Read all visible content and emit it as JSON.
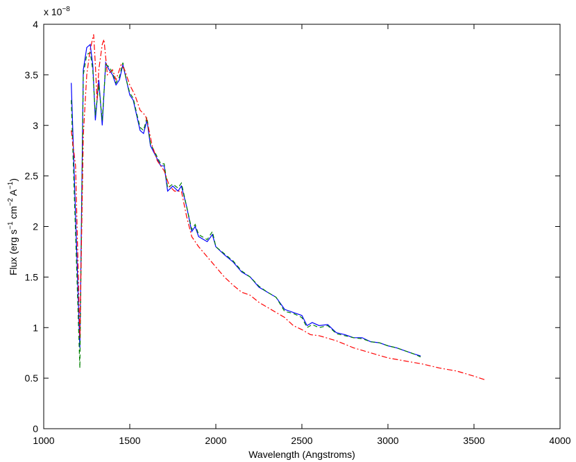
{
  "chart_data": {
    "type": "line",
    "exponent_label": [
      "x 10",
      "−8"
    ],
    "xlabel": "Wavelength (Angstroms)",
    "ylabel": [
      "Flux (erg s",
      "−1",
      " cm",
      "−2",
      " A",
      "−1",
      ")"
    ],
    "xlim": [
      1000,
      4000
    ],
    "ylim": [
      0,
      4
    ],
    "xticks": [
      1000,
      1500,
      2000,
      2500,
      3000,
      3500,
      4000
    ],
    "yticks": [
      0,
      0.5,
      1,
      1.5,
      2,
      2.5,
      3,
      3.5,
      4
    ],
    "grid": false,
    "series": [
      {
        "color": "#0000ff",
        "dash": "solid",
        "x": [
          1160,
          1210,
          1230,
          1250,
          1270,
          1285,
          1300,
          1320,
          1340,
          1360,
          1380,
          1400,
          1420,
          1440,
          1460,
          1480,
          1500,
          1520,
          1540,
          1560,
          1580,
          1600,
          1620,
          1650,
          1680,
          1700,
          1720,
          1750,
          1780,
          1800,
          1830,
          1860,
          1880,
          1900,
          1950,
          1980,
          2000,
          2050,
          2100,
          2150,
          2200,
          2250,
          2300,
          2350,
          2400,
          2450,
          2500,
          2530,
          2560,
          2600,
          2650,
          2700,
          2750,
          2800,
          2850,
          2900,
          2950,
          3000,
          3050,
          3100,
          3150,
          3190
        ],
        "values": [
          3.42,
          0.8,
          3.55,
          3.77,
          3.8,
          3.6,
          3.05,
          3.45,
          3.0,
          3.62,
          3.55,
          3.5,
          3.4,
          3.45,
          3.6,
          3.45,
          3.3,
          3.25,
          3.1,
          2.95,
          2.92,
          3.05,
          2.8,
          2.7,
          2.6,
          2.6,
          2.35,
          2.4,
          2.35,
          2.4,
          2.2,
          1.95,
          2.0,
          1.9,
          1.85,
          1.92,
          1.8,
          1.72,
          1.65,
          1.55,
          1.5,
          1.4,
          1.35,
          1.3,
          1.18,
          1.15,
          1.12,
          1.02,
          1.05,
          1.02,
          1.03,
          0.95,
          0.93,
          0.9,
          0.9,
          0.86,
          0.85,
          0.82,
          0.8,
          0.77,
          0.74,
          0.72
        ]
      },
      {
        "color": "#008000",
        "dash": "dashed",
        "x": [
          1160,
          1210,
          1230,
          1250,
          1270,
          1285,
          1300,
          1320,
          1340,
          1360,
          1380,
          1400,
          1420,
          1440,
          1460,
          1480,
          1500,
          1520,
          1540,
          1560,
          1580,
          1600,
          1620,
          1650,
          1680,
          1700,
          1720,
          1750,
          1780,
          1800,
          1830,
          1860,
          1880,
          1900,
          1950,
          1980,
          2000,
          2050,
          2100,
          2150,
          2200,
          2250,
          2300,
          2350,
          2400,
          2450,
          2500,
          2530,
          2560,
          2600,
          2650,
          2700,
          2750,
          2800,
          2850,
          2900,
          2950,
          3000,
          3050,
          3100,
          3150,
          3190
        ],
        "values": [
          3.25,
          0.6,
          3.5,
          3.7,
          3.72,
          3.55,
          3.1,
          3.4,
          3.05,
          3.6,
          3.58,
          3.52,
          3.42,
          3.48,
          3.62,
          3.45,
          3.32,
          3.27,
          3.12,
          2.98,
          2.95,
          3.08,
          2.82,
          2.72,
          2.62,
          2.62,
          2.38,
          2.42,
          2.38,
          2.43,
          2.2,
          1.97,
          2.02,
          1.92,
          1.87,
          1.95,
          1.8,
          1.73,
          1.66,
          1.56,
          1.5,
          1.41,
          1.35,
          1.3,
          1.16,
          1.14,
          1.1,
          1.0,
          1.03,
          1.0,
          1.02,
          0.94,
          0.92,
          0.9,
          0.89,
          0.86,
          0.85,
          0.82,
          0.8,
          0.77,
          0.74,
          0.71
        ]
      },
      {
        "color": "#ff0000",
        "dash": "dashdot",
        "x": [
          1160,
          1185,
          1210,
          1230,
          1250,
          1270,
          1290,
          1300,
          1310,
          1320,
          1340,
          1350,
          1370,
          1400,
          1420,
          1450,
          1470,
          1500,
          1530,
          1560,
          1590,
          1600,
          1630,
          1660,
          1700,
          1730,
          1760,
          1800,
          1830,
          1860,
          1900,
          1950,
          2000,
          2050,
          2100,
          2150,
          2200,
          2250,
          2300,
          2350,
          2400,
          2450,
          2500,
          2550,
          2600,
          2700,
          2800,
          2900,
          3000,
          3100,
          3200,
          3300,
          3400,
          3500,
          3570
        ],
        "values": [
          2.95,
          2.6,
          0.9,
          2.9,
          3.5,
          3.75,
          3.9,
          3.6,
          3.25,
          3.55,
          3.8,
          3.85,
          3.5,
          3.55,
          3.45,
          3.6,
          3.55,
          3.4,
          3.3,
          3.15,
          3.1,
          3.05,
          2.8,
          2.65,
          2.55,
          2.4,
          2.35,
          2.35,
          2.1,
          1.9,
          1.8,
          1.7,
          1.6,
          1.5,
          1.42,
          1.35,
          1.32,
          1.25,
          1.2,
          1.15,
          1.1,
          1.02,
          0.98,
          0.93,
          0.92,
          0.87,
          0.8,
          0.75,
          0.7,
          0.67,
          0.64,
          0.6,
          0.57,
          0.52,
          0.48
        ]
      }
    ]
  }
}
